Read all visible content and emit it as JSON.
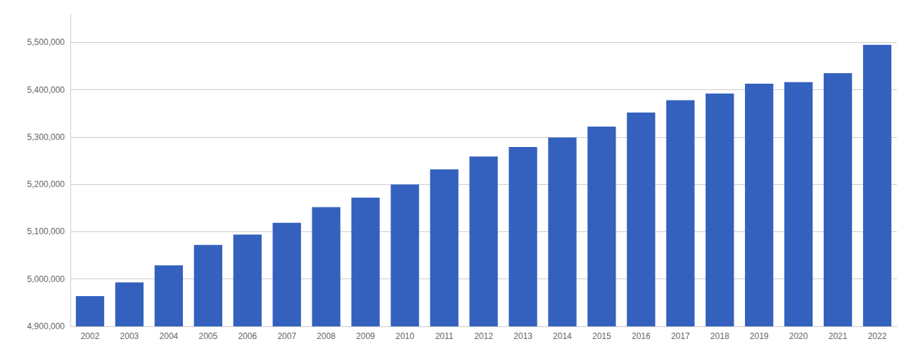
{
  "chart_data": {
    "type": "bar",
    "categories": [
      "2002",
      "2003",
      "2004",
      "2005",
      "2006",
      "2007",
      "2008",
      "2009",
      "2010",
      "2011",
      "2012",
      "2013",
      "2014",
      "2015",
      "2016",
      "2017",
      "2018",
      "2019",
      "2020",
      "2021",
      "2022"
    ],
    "values": [
      4964000,
      4993000,
      5029000,
      5072000,
      5094000,
      5119000,
      5152000,
      5172000,
      5200000,
      5232000,
      5259000,
      5279000,
      5299000,
      5322000,
      5352000,
      5378000,
      5392000,
      5413000,
      5416000,
      5435000,
      5495000
    ],
    "color": "#3461be",
    "ylim": [
      4900000,
      5560000
    ],
    "yticks": [
      {
        "value": 4900000,
        "label": "4,900,000"
      },
      {
        "value": 5000000,
        "label": "5,000,000"
      },
      {
        "value": 5100000,
        "label": "5,100,000"
      },
      {
        "value": 5200000,
        "label": "5,200,000"
      },
      {
        "value": 5300000,
        "label": "5,300,000"
      },
      {
        "value": 5400000,
        "label": "5,400,000"
      },
      {
        "value": 5500000,
        "label": "5,500,000"
      }
    ],
    "grid": true
  }
}
